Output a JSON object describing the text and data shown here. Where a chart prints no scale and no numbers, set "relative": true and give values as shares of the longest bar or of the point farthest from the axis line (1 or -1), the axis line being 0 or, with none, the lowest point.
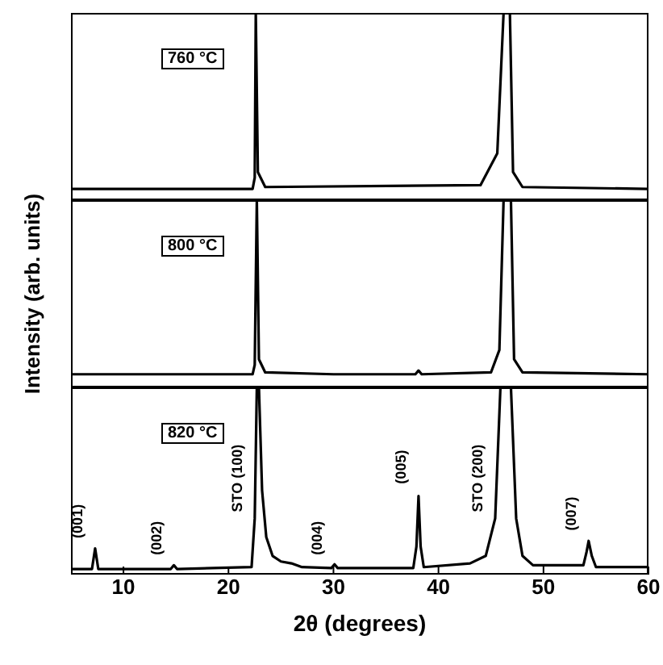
{
  "chart_data": [
    {
      "type": "line",
      "color": "#000000",
      "relative": true,
      "xlim": [
        5,
        60
      ],
      "xticks": [
        10,
        20,
        30,
        40,
        50,
        60
      ],
      "tick_labels": false,
      "annotations": [
        "760 °C"
      ],
      "x": [
        5,
        22.3,
        22.5,
        22.6,
        22.8,
        23.5,
        44,
        45.6,
        46.2,
        46.8,
        47.1,
        48,
        60
      ],
      "values": [
        0.06,
        0.06,
        0.12,
        1,
        0.15,
        0.07,
        0.08,
        0.25,
        1,
        1,
        0.15,
        0.07,
        0.06
      ]
    },
    {
      "type": "line",
      "color": "#000000",
      "relative": true,
      "xlim": [
        5,
        60
      ],
      "xticks": [
        10,
        20,
        30,
        40,
        50,
        60
      ],
      "tick_labels": false,
      "ylabel": "Intensity (arb. units)",
      "annotations": [
        "800 °C"
      ],
      "x": [
        5,
        22.3,
        22.5,
        22.7,
        22.9,
        23.5,
        30,
        37.8,
        38.1,
        38.4,
        45,
        45.8,
        46.2,
        46.9,
        47.2,
        48,
        60
      ],
      "values": [
        0.07,
        0.07,
        0.12,
        1,
        0.15,
        0.08,
        0.07,
        0.07,
        0.09,
        0.07,
        0.08,
        0.2,
        1,
        1,
        0.15,
        0.08,
        0.07
      ]
    },
    {
      "type": "line",
      "color": "#000000",
      "relative": true,
      "xlim": [
        5,
        60
      ],
      "xticks": [
        10,
        20,
        30,
        40,
        50,
        60
      ],
      "tick_labels": "x",
      "xlabel": "2θ (degrees)",
      "annotations": [
        "820 °C",
        {
          "text": "(001)",
          "x": 7.3,
          "y": 0.16
        },
        {
          "text": "(002)",
          "x": 14.8,
          "y": 0.07
        },
        {
          "text": "STO (100)",
          "x": 22.5,
          "y": 0.3
        },
        {
          "text": "(004)",
          "x": 30.1,
          "y": 0.07
        },
        {
          "text": "(005)",
          "x": 38.1,
          "y": 0.45
        },
        {
          "text": "STO (200)",
          "x": 45.4,
          "y": 0.3
        },
        {
          "text": "(007)",
          "x": 54.3,
          "y": 0.2
        }
      ],
      "x": [
        5,
        7,
        7.3,
        7.6,
        14.5,
        14.8,
        15.1,
        22.2,
        22.5,
        22.7,
        22.9,
        23.2,
        23.6,
        24.2,
        25,
        26,
        27,
        29.8,
        30.1,
        30.4,
        37.6,
        37.9,
        38.1,
        38.3,
        38.6,
        43,
        44.5,
        45.4,
        45.9,
        46.4,
        46.9,
        47.4,
        48,
        49,
        53.8,
        54.1,
        54.3,
        54.6,
        55,
        60
      ],
      "values": [
        0.03,
        0.03,
        0.14,
        0.03,
        0.03,
        0.05,
        0.03,
        0.04,
        0.3,
        1,
        1,
        0.45,
        0.2,
        0.1,
        0.07,
        0.06,
        0.04,
        0.035,
        0.055,
        0.035,
        0.035,
        0.15,
        0.42,
        0.15,
        0.04,
        0.06,
        0.1,
        0.3,
        1,
        1,
        1,
        0.3,
        0.1,
        0.05,
        0.05,
        0.12,
        0.18,
        0.1,
        0.04,
        0.04
      ]
    }
  ]
}
